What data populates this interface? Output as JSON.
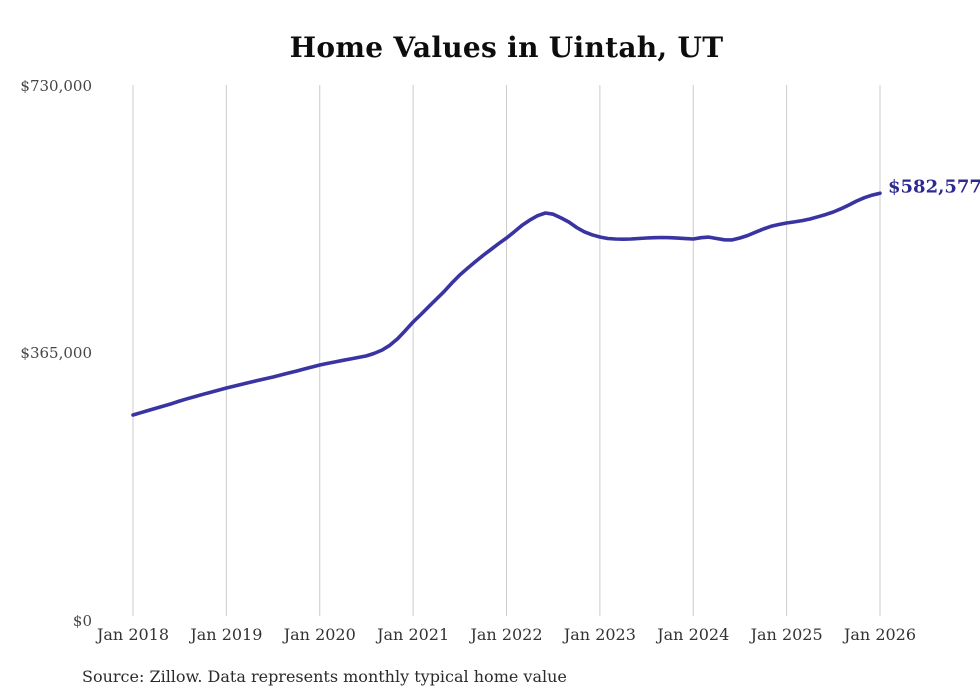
{
  "chart": {
    "title": "Home Values in Uintah, UT",
    "end_label": "$582,577",
    "source_note": "Source: Zillow. Data represents monthly typical home value"
  },
  "chart_data": {
    "type": "line",
    "title": "Home Values in Uintah, UT",
    "series_name": "Monthly typical home value",
    "x_start": "2018-01",
    "x_end": "2026-01",
    "frequency": "monthly",
    "x_tick_labels": [
      "Jan 2018",
      "Jan 2019",
      "Jan 2020",
      "Jan 2021",
      "Jan 2022",
      "Jan 2023",
      "Jan 2024",
      "Jan 2025",
      "Jan 2026"
    ],
    "y_tick_labels": [
      "$0",
      "$365,000",
      "$730,000"
    ],
    "ylim": [
      0,
      730000
    ],
    "grid": "vertical-only",
    "legend": "none",
    "line_color": "#3a34a2",
    "grid_color": "#cccccc",
    "end_value": 582577,
    "values": [
      280600,
      283700,
      286800,
      289900,
      293000,
      296100,
      299600,
      302700,
      305700,
      308700,
      311600,
      314500,
      317300,
      319900,
      322500,
      325000,
      327500,
      329900,
      332300,
      335000,
      337700,
      340400,
      343200,
      346000,
      348700,
      350800,
      352900,
      355000,
      357000,
      359000,
      361000,
      364500,
      369000,
      375500,
      384500,
      395500,
      407200,
      417500,
      428000,
      438500,
      449000,
      460500,
      471200,
      480500,
      489500,
      498000,
      506000,
      514000,
      521600,
      530000,
      539000,
      546000,
      552000,
      555700,
      554000,
      549000,
      543400,
      536000,
      530000,
      526000,
      523000,
      521000,
      520200,
      520000,
      520300,
      520900,
      521600,
      522000,
      522300,
      522000,
      521500,
      520800,
      520200,
      522000,
      522900,
      521000,
      519200,
      519000,
      521600,
      525000,
      529500,
      533900,
      537500,
      540000,
      542000,
      543500,
      545300,
      547500,
      550500,
      553500,
      557000,
      561500,
      566500,
      572000,
      576500,
      580000,
      582577
    ]
  }
}
